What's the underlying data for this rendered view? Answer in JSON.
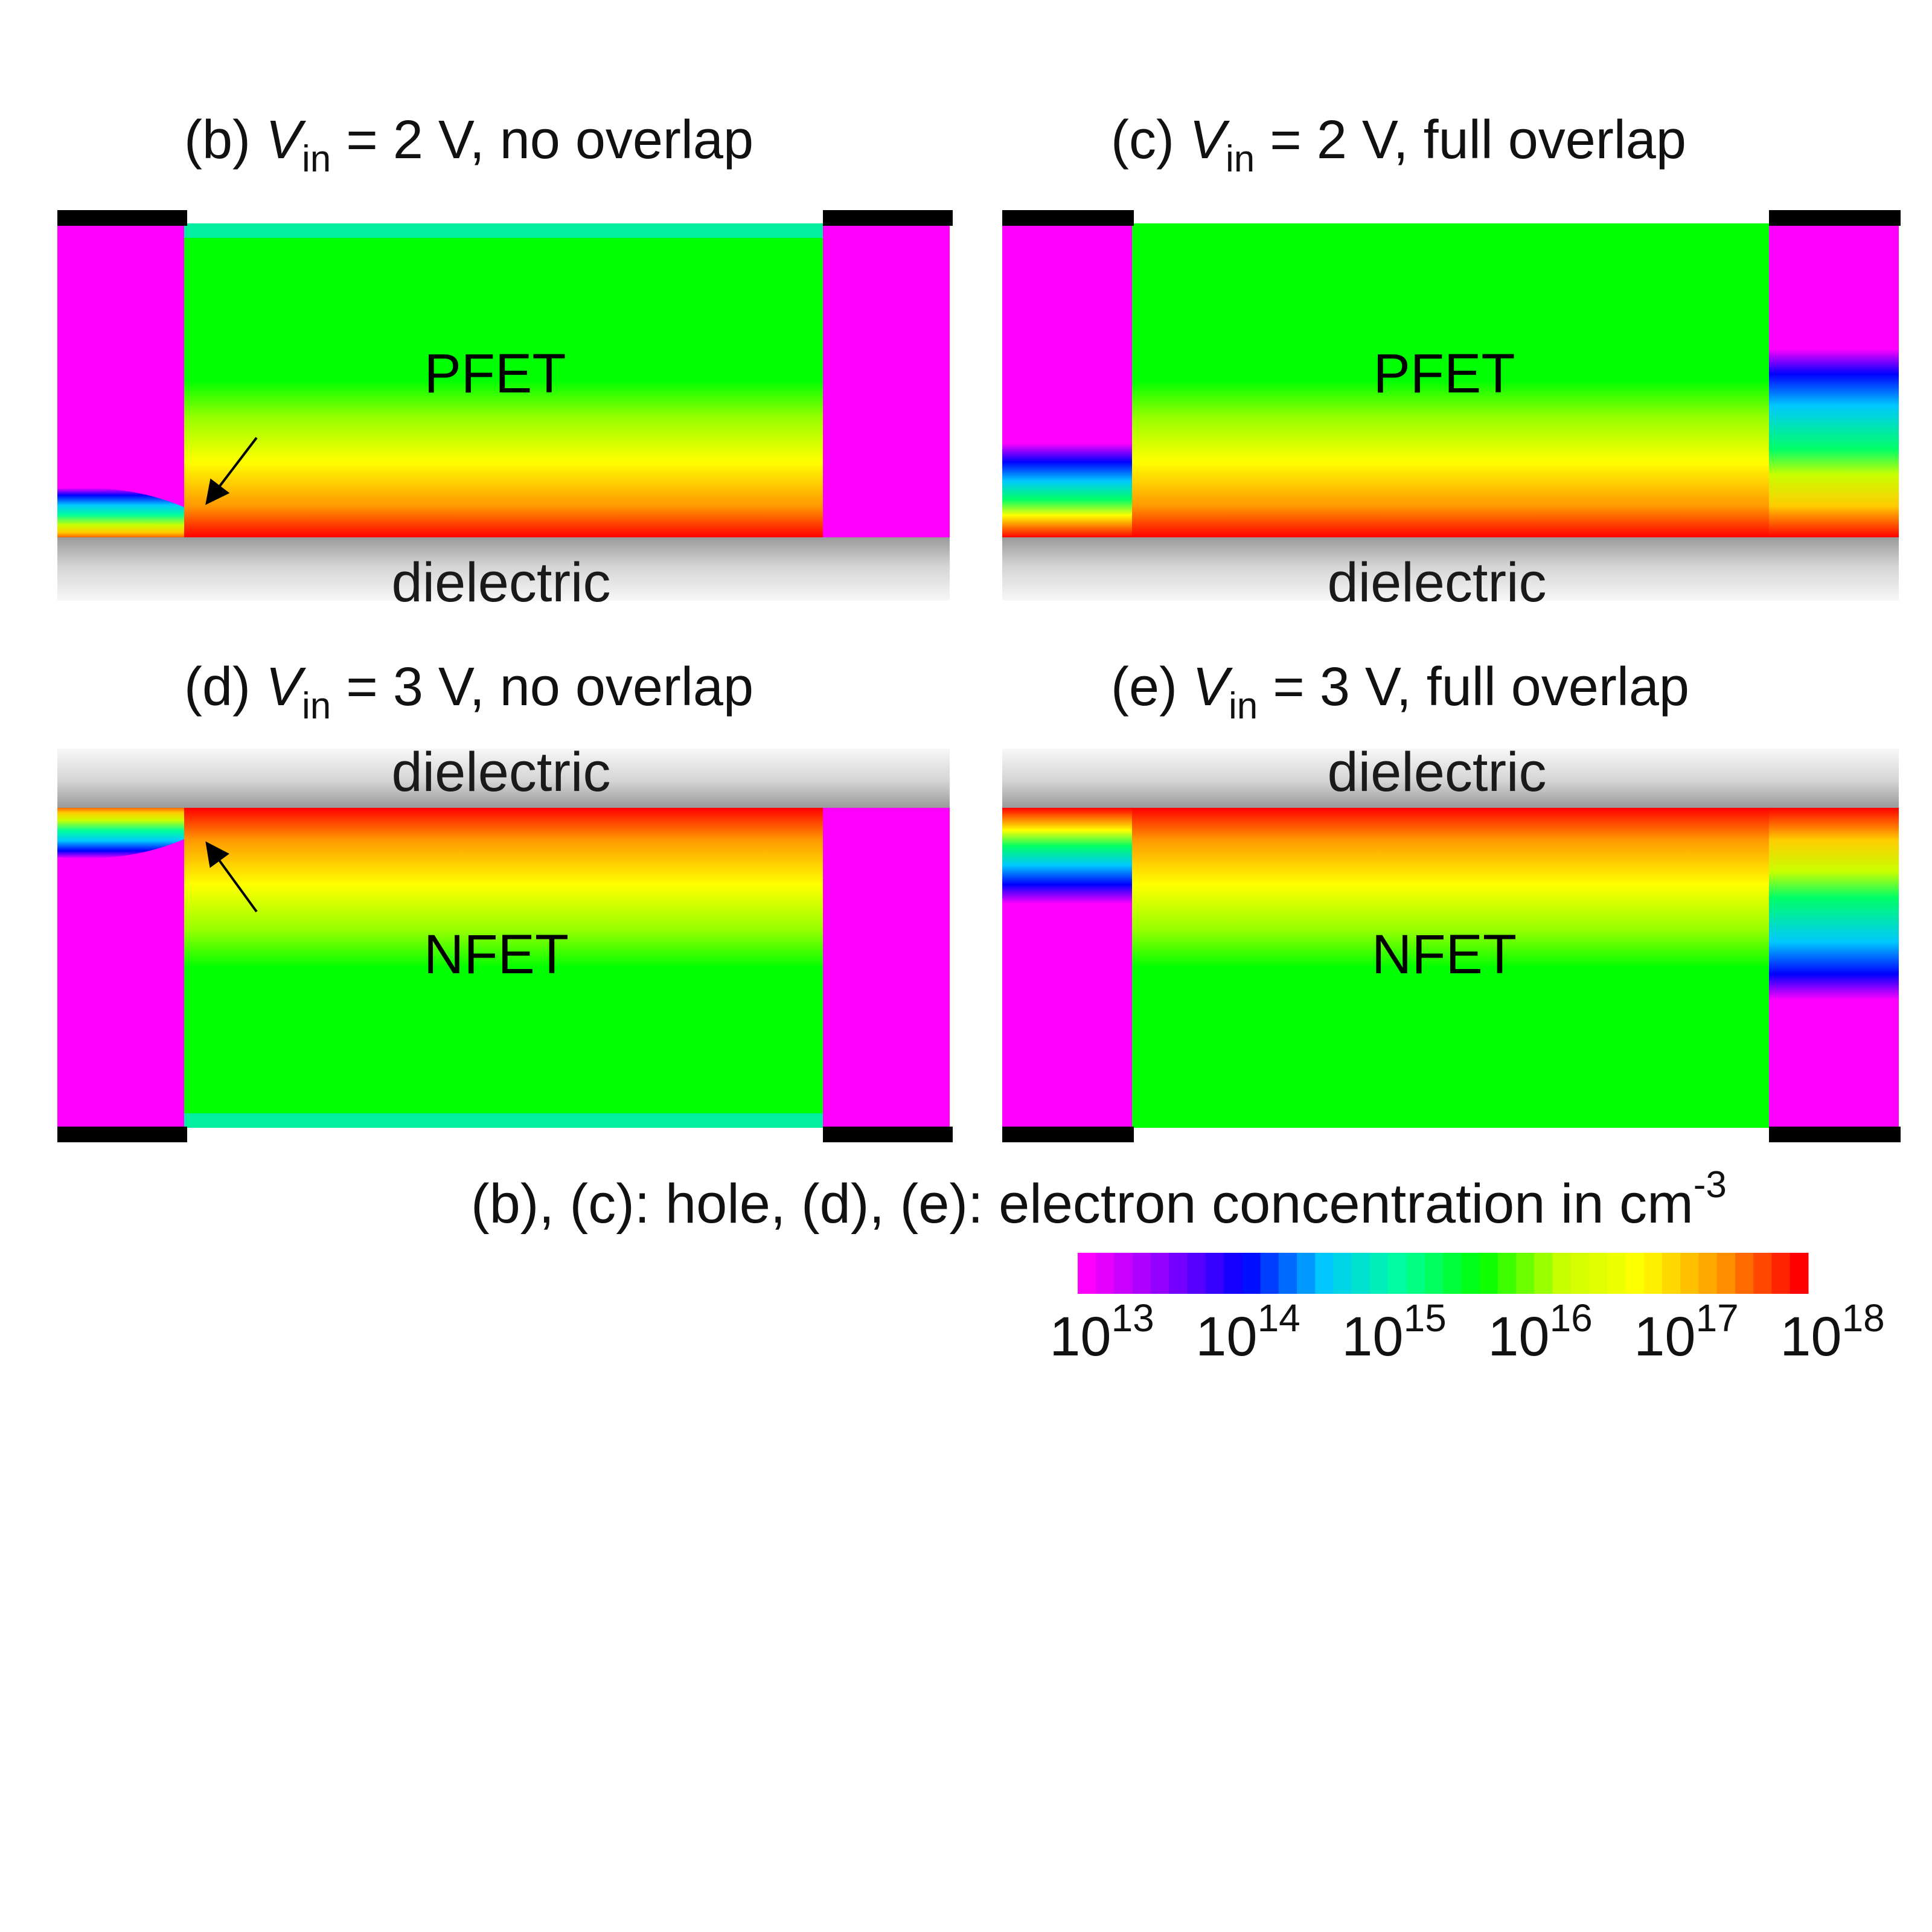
{
  "panels": [
    {
      "id": "b",
      "prefix": "(b) ",
      "var": "V",
      "sub": "in",
      "suffix": " = 2 V, no overlap",
      "device": "PFET",
      "dielectric": "dielectric",
      "dielectric_side": "bottom",
      "overlap": "none"
    },
    {
      "id": "c",
      "prefix": "(c) ",
      "var": "V",
      "sub": "in",
      "suffix": " = 2 V, full overlap",
      "device": "PFET",
      "dielectric": "dielectric",
      "dielectric_side": "bottom",
      "overlap": "full"
    },
    {
      "id": "d",
      "prefix": "(d) ",
      "var": "V",
      "sub": "in",
      "suffix": " = 3 V, no overlap",
      "device": "NFET",
      "dielectric": "dielectric",
      "dielectric_side": "top",
      "overlap": "none"
    },
    {
      "id": "e",
      "prefix": "(e) ",
      "var": "V",
      "sub": "in",
      "suffix": " = 3 V, full overlap",
      "device": "NFET",
      "dielectric": "dielectric",
      "dielectric_side": "top",
      "overlap": "full"
    }
  ],
  "colorbar": {
    "caption": "(b), (c): hole, (d), (e): electron concentration in cm",
    "caption_sup": "-3",
    "ticks": [
      {
        "base": "10",
        "exp": "13"
      },
      {
        "base": "10",
        "exp": "14"
      },
      {
        "base": "10",
        "exp": "15"
      },
      {
        "base": "10",
        "exp": "16"
      },
      {
        "base": "10",
        "exp": "17"
      },
      {
        "base": "10",
        "exp": "18"
      }
    ],
    "colors": [
      "#ff00ff",
      "#8a00ff",
      "#0000ff",
      "#00c8ff",
      "#00ff9a",
      "#00ff00",
      "#c8ff00",
      "#ffff00",
      "#ff9900",
      "#ff0000"
    ]
  }
}
